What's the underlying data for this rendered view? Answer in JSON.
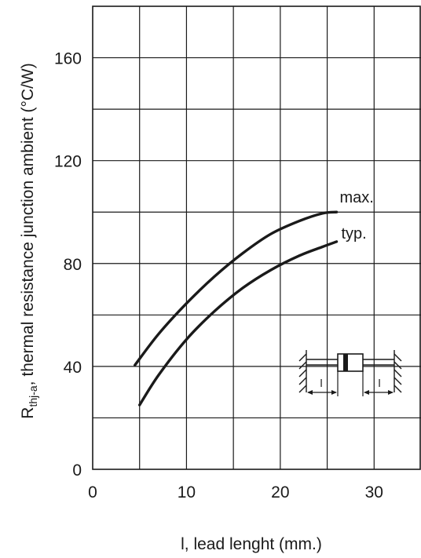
{
  "chart_data": {
    "type": "line",
    "title": "",
    "xlabel": "l, lead lenght (mm.)",
    "ylabel": {
      "symbol": "R",
      "subscript": "thj-a",
      "rest": ", thermal resistance junction ambient (°C/W)"
    },
    "xlim": [
      0,
      35
    ],
    "ylim": [
      0,
      180
    ],
    "x_ticks": [
      0,
      10,
      20,
      30
    ],
    "y_ticks": [
      0,
      40,
      80,
      120,
      160
    ],
    "grid": true,
    "series": [
      {
        "name": "max.",
        "x": [
          4.5,
          7,
          10,
          13,
          16,
          19,
          22,
          24.5,
          26
        ],
        "y": [
          40.5,
          52.5,
          64.5,
          75,
          84,
          91.5,
          96.5,
          99.5,
          100
        ]
      },
      {
        "name": "typ.",
        "x": [
          5,
          7,
          10,
          13,
          16,
          19,
          22,
          24.5,
          26
        ],
        "y": [
          25,
          36.5,
          50.5,
          61.5,
          70.5,
          77.5,
          83,
          86.5,
          88.5
        ]
      }
    ],
    "inset": {
      "dimension_label_left": "l",
      "dimension_label_right": "l"
    }
  }
}
